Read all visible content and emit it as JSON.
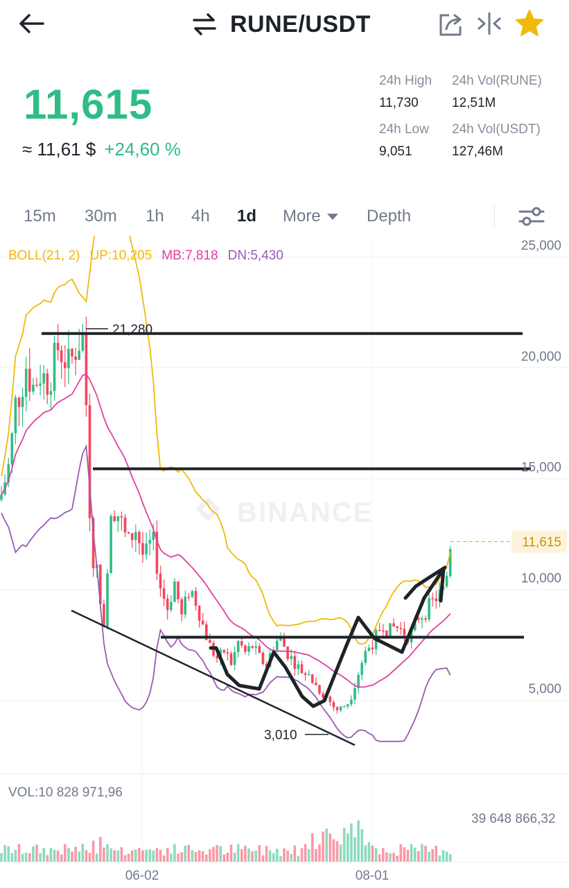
{
  "header": {
    "title": "RUNE/USDT",
    "icons": [
      "back-arrow-icon",
      "swap-arrows-icon",
      "share-icon",
      "compare-icon",
      "star-icon"
    ],
    "star_color": "#f0b90b"
  },
  "ticker": {
    "last_price": "11,615",
    "approx_usd": "≈ 11,61 $",
    "change_pct": "+24,60 %",
    "up_color": "#2ebd85",
    "down_color": "#f6465d"
  },
  "stats": {
    "high_label": "24h High",
    "high_value": "11,730",
    "low_label": "24h Low",
    "low_value": "9,051",
    "vol_base_label": "24h Vol(RUNE)",
    "vol_base_value": "12,51M",
    "vol_quote_label": "24h Vol(USDT)",
    "vol_quote_value": "127,46M"
  },
  "tabs": {
    "items": [
      {
        "label": "15m",
        "active": false
      },
      {
        "label": "30m",
        "active": false
      },
      {
        "label": "1h",
        "active": false
      },
      {
        "label": "4h",
        "active": false
      },
      {
        "label": "1d",
        "active": true
      },
      {
        "label": "More",
        "active": false
      },
      {
        "label": "Depth",
        "active": false
      }
    ]
  },
  "indicator": {
    "name": "BOLL(21, 2)",
    "up": "UP:10,205",
    "mb": "MB:7,818",
    "dn": "DN:5,430"
  },
  "volume": {
    "label": "VOL:10 828 971,96",
    "max_label": "39 648 866,32"
  },
  "chart_data": {
    "type": "candlestick",
    "y_ticks": [
      {
        "value": 25000,
        "label": "25,000"
      },
      {
        "value": 20000,
        "label": "20,000"
      },
      {
        "value": 15000,
        "label": "15,000"
      },
      {
        "value": 10000,
        "label": "10,000"
      },
      {
        "value": 5000,
        "label": "5,000"
      }
    ],
    "ylim": [
      2000,
      25000
    ],
    "x_ticks": [
      "06-02",
      "08-01"
    ],
    "current_price": {
      "value": 11615,
      "label": "11,615"
    },
    "annotations": [
      {
        "label": "21,280",
        "value": 21280
      },
      {
        "label": "3,010",
        "value": 3010
      }
    ],
    "horizontal_levels": [
      21000,
      14900,
      7300
    ],
    "watermark": "BINANCE",
    "grid": true
  }
}
